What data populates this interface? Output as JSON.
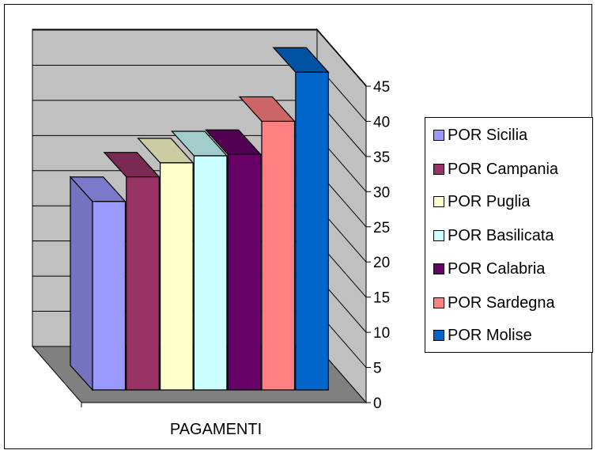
{
  "chart_data": {
    "type": "bar",
    "categories": [
      "PAGAMENTI"
    ],
    "series": [
      {
        "name": "POR Sicilia",
        "values": [
          26.8
        ],
        "color": "#9999ff"
      },
      {
        "name": "POR Campania",
        "values": [
          30.3
        ],
        "color": "#993366"
      },
      {
        "name": "POR Puglia",
        "values": [
          32.3
        ],
        "color": "#ffffcc"
      },
      {
        "name": "POR Basilicata",
        "values": [
          33.3
        ],
        "color": "#ccffff"
      },
      {
        "name": "POR Calabria",
        "values": [
          33.5
        ],
        "color": "#660066"
      },
      {
        "name": "POR Sardegna",
        "values": [
          38.2
        ],
        "color": "#ff8080"
      },
      {
        "name": "POR Molise",
        "values": [
          45.2
        ],
        "color": "#0066cc"
      }
    ],
    "ylim": [
      0,
      45
    ],
    "yticks": [
      "0",
      "5",
      "10",
      "15",
      "20",
      "25",
      "30",
      "35",
      "40",
      "45"
    ],
    "grid": true,
    "legend_position": "right",
    "style": "3d-bar",
    "wall_color": "#c0c0c0",
    "floor_color": "#808080"
  }
}
